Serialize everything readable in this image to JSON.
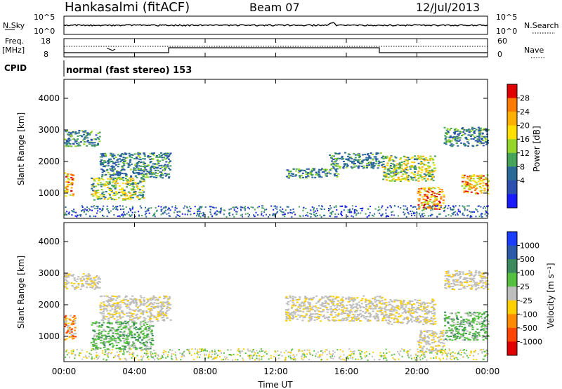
{
  "header": {
    "station": "Hankasalmi (fitACF)",
    "beam": "Beam 07",
    "date": "12/Jul/2013"
  },
  "top_panels": {
    "nsky_label": "N.Sky",
    "nsky_ticks": [
      "10^5",
      "10^0"
    ],
    "nsearch_label": "N.Search",
    "nsearch_ticks": [
      "10^5",
      "10^0"
    ],
    "freq_label": "Freq.",
    "freq_unit": "[MHz]",
    "freq_ticks": [
      "18",
      "8"
    ],
    "nave_ticks": [
      "60",
      "0"
    ],
    "nave_label": "Nave",
    "cpid_label": "CPID",
    "cpid_text": "normal (fast stereo) 153"
  },
  "colorbars": {
    "power_label": "Power [dB]",
    "power_ticks": [
      "28",
      "24",
      "20",
      "16",
      "12",
      "8",
      "4"
    ],
    "power_colors": [
      "#e00000",
      "#ff7a00",
      "#ffb000",
      "#ffe000",
      "#96d62a",
      "#45a35a",
      "#2a6a99",
      "#2c4fb0",
      "#1a1aff"
    ],
    "velocity_label": "Velocity [m s⁻¹]",
    "velocity_ticks": [
      "1000",
      "500",
      "100",
      "25",
      "-25",
      "-100",
      "-500",
      "-1000"
    ],
    "velocity_colors": [
      "#1a3dff",
      "#2c5aa8",
      "#3d8a5e",
      "#55c040",
      "#bebebe",
      "#ffd000",
      "#ff8c00",
      "#ff4500",
      "#e00000"
    ]
  },
  "chart_data": [
    {
      "type": "heatmap",
      "title": "Power",
      "xlabel": "Time UT",
      "ylabel": "Slant Range [km]",
      "x_ticks": [
        "00:00",
        "04:00",
        "08:00",
        "12:00",
        "16:00",
        "20:00",
        "00:00"
      ],
      "y_ticks": [
        "4000",
        "3000",
        "2000",
        "1000"
      ],
      "xlim_hours": [
        0,
        24
      ],
      "ylim_km": [
        200,
        4600
      ],
      "echo_regions": [
        {
          "t0": 0.0,
          "t1": 2.0,
          "r0": 2500,
          "r1": 3000,
          "level": "low"
        },
        {
          "t0": 2.0,
          "t1": 6.0,
          "r0": 1500,
          "r1": 2300,
          "level": "low"
        },
        {
          "t0": 0.0,
          "t1": 0.5,
          "r0": 900,
          "r1": 1700,
          "level": "high"
        },
        {
          "t0": 1.5,
          "t1": 4.5,
          "r0": 800,
          "r1": 1500,
          "level": "mid"
        },
        {
          "t0": 12.5,
          "t1": 15.5,
          "r0": 1500,
          "r1": 1800,
          "level": "low"
        },
        {
          "t0": 15.0,
          "t1": 18.0,
          "r0": 1800,
          "r1": 2300,
          "level": "low"
        },
        {
          "t0": 18.0,
          "t1": 21.0,
          "r0": 1400,
          "r1": 2200,
          "level": "mid"
        },
        {
          "t0": 20.0,
          "t1": 21.5,
          "r0": 500,
          "r1": 1200,
          "level": "high"
        },
        {
          "t0": 22.5,
          "t1": 24.0,
          "r0": 1000,
          "r1": 1600,
          "level": "high"
        },
        {
          "t0": 21.5,
          "t1": 24.0,
          "r0": 2500,
          "r1": 3100,
          "level": "low"
        }
      ]
    },
    {
      "type": "heatmap",
      "title": "Velocity",
      "xlabel": "Time UT",
      "ylabel": "Slant Range [km]",
      "x_ticks": [
        "00:00",
        "04:00",
        "08:00",
        "12:00",
        "16:00",
        "20:00",
        "00:00"
      ],
      "y_ticks": [
        "4000",
        "3000",
        "2000",
        "1000"
      ],
      "xlim_hours": [
        0,
        24
      ],
      "ylim_km": [
        200,
        4600
      ],
      "echo_regions": [
        {
          "t0": 0.0,
          "t1": 2.0,
          "r0": 2500,
          "r1": 3000,
          "level": "zero"
        },
        {
          "t0": 2.0,
          "t1": 6.0,
          "r0": 1500,
          "r1": 2300,
          "level": "zero"
        },
        {
          "t0": 0.0,
          "t1": 0.6,
          "r0": 900,
          "r1": 1700,
          "level": "towards"
        },
        {
          "t0": 1.5,
          "t1": 5.0,
          "r0": 600,
          "r1": 1500,
          "level": "away"
        },
        {
          "t0": 12.5,
          "t1": 18.0,
          "r0": 1500,
          "r1": 2300,
          "level": "zero"
        },
        {
          "t0": 18.0,
          "t1": 21.0,
          "r0": 1400,
          "r1": 2200,
          "level": "zero"
        },
        {
          "t0": 20.0,
          "t1": 21.5,
          "r0": 500,
          "r1": 1200,
          "level": "zero"
        },
        {
          "t0": 21.5,
          "t1": 24.0,
          "r0": 900,
          "r1": 1800,
          "level": "away"
        },
        {
          "t0": 21.5,
          "t1": 24.0,
          "r0": 2500,
          "r1": 3100,
          "level": "zero"
        }
      ]
    }
  ]
}
